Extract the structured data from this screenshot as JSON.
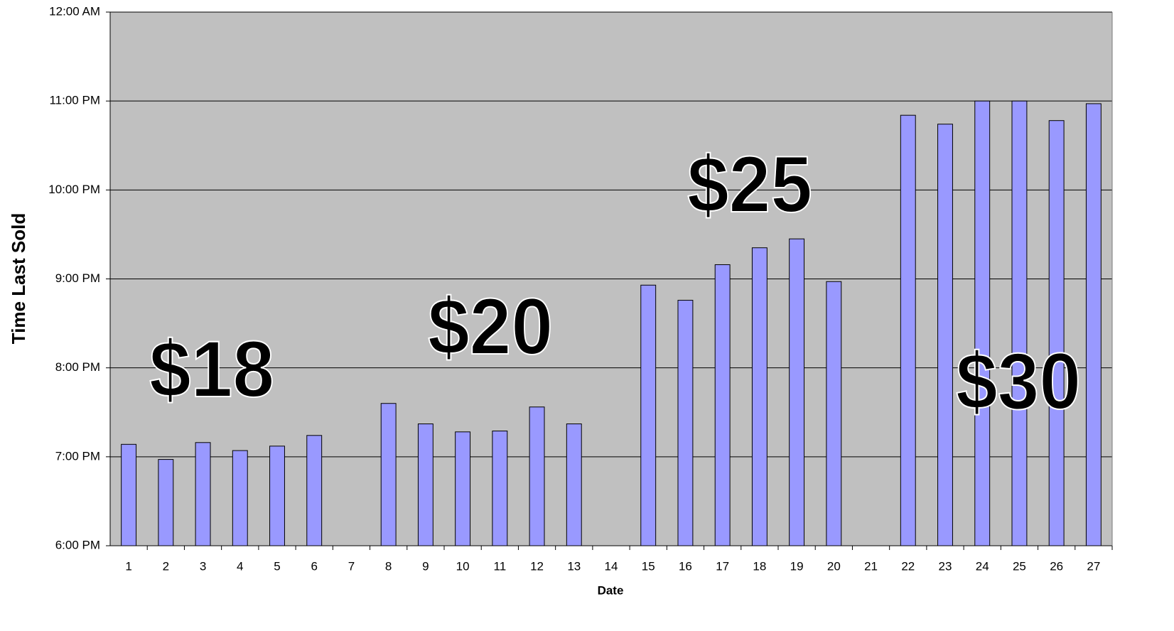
{
  "chart_data": {
    "type": "bar",
    "x_label": "Date",
    "y_label": "Time Last Sold",
    "categories": [
      1,
      2,
      3,
      4,
      5,
      6,
      7,
      8,
      9,
      10,
      11,
      12,
      13,
      14,
      15,
      16,
      17,
      18,
      19,
      20,
      21,
      22,
      23,
      24,
      25,
      26,
      27
    ],
    "values": [
      19.14,
      18.97,
      19.16,
      19.07,
      19.12,
      19.24,
      null,
      19.6,
      19.37,
      19.28,
      19.29,
      19.56,
      19.37,
      null,
      20.93,
      20.76,
      21.16,
      21.35,
      21.45,
      20.97,
      null,
      22.84,
      22.74,
      23.0,
      23.0,
      22.78,
      22.97
    ],
    "color": "#9999ff",
    "ylim": [
      18,
      24
    ],
    "yticks": [
      {
        "value": 18,
        "label": "6:00 PM"
      },
      {
        "value": 19,
        "label": "7:00 PM"
      },
      {
        "value": 20,
        "label": "8:00 PM"
      },
      {
        "value": 21,
        "label": "9:00 PM"
      },
      {
        "value": 22,
        "label": "10:00 PM"
      },
      {
        "value": 23,
        "label": "11:00 PM"
      },
      {
        "value": 24,
        "label": "12:00 AM"
      }
    ],
    "grid": true,
    "annotations": [
      "$18",
      "$20",
      "$25",
      "$30"
    ]
  }
}
